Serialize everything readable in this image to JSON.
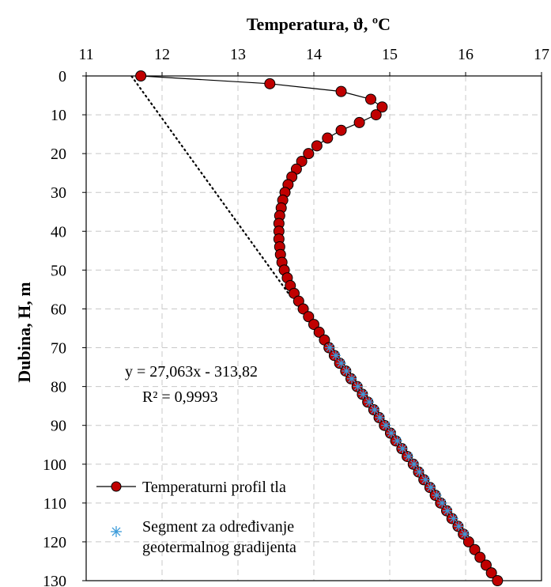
{
  "chart_data": {
    "type": "scatter",
    "title": "Temperatura, ϑ, ºC",
    "xlabel": "Temperatura, ϑ, ºC",
    "ylabel": "Dubina, H, m",
    "x_axis_position": "top",
    "y_axis_reversed": true,
    "xlim": [
      11,
      17
    ],
    "ylim": [
      0,
      130
    ],
    "x_ticks": [
      "11",
      "12",
      "13",
      "14",
      "15",
      "16",
      "17"
    ],
    "y_ticks": [
      "0",
      "10",
      "20",
      "30",
      "40",
      "50",
      "60",
      "70",
      "80",
      "90",
      "100",
      "110",
      "120",
      "130"
    ],
    "grid": "dashed",
    "legend_position": "bottom-left",
    "series": [
      {
        "name": "Temperaturni profil tla",
        "marker": "circle",
        "color": "#c00000",
        "line": "solid",
        "points": [
          [
            11.72,
            0
          ],
          [
            13.42,
            2
          ],
          [
            14.36,
            4
          ],
          [
            14.75,
            6
          ],
          [
            14.9,
            8
          ],
          [
            14.82,
            10
          ],
          [
            14.6,
            12
          ],
          [
            14.36,
            14
          ],
          [
            14.18,
            16
          ],
          [
            14.04,
            18
          ],
          [
            13.93,
            20
          ],
          [
            13.84,
            22
          ],
          [
            13.77,
            24
          ],
          [
            13.71,
            26
          ],
          [
            13.66,
            28
          ],
          [
            13.62,
            30
          ],
          [
            13.59,
            32
          ],
          [
            13.57,
            34
          ],
          [
            13.55,
            36
          ],
          [
            13.54,
            38
          ],
          [
            13.54,
            40
          ],
          [
            13.54,
            42
          ],
          [
            13.55,
            44
          ],
          [
            13.56,
            46
          ],
          [
            13.58,
            48
          ],
          [
            13.61,
            50
          ],
          [
            13.65,
            52
          ],
          [
            13.69,
            54
          ],
          [
            13.74,
            56
          ],
          [
            13.8,
            58
          ],
          [
            13.86,
            60
          ],
          [
            13.93,
            62
          ],
          [
            14.0,
            64
          ],
          [
            14.07,
            66
          ],
          [
            14.14,
            68
          ],
          [
            14.2,
            70
          ],
          [
            14.27,
            72
          ],
          [
            14.34,
            74
          ],
          [
            14.42,
            76
          ],
          [
            14.49,
            78
          ],
          [
            14.57,
            80
          ],
          [
            14.64,
            82
          ],
          [
            14.71,
            84
          ],
          [
            14.79,
            86
          ],
          [
            14.86,
            88
          ],
          [
            14.93,
            90
          ],
          [
            15.01,
            92
          ],
          [
            15.08,
            94
          ],
          [
            15.16,
            96
          ],
          [
            15.23,
            98
          ],
          [
            15.31,
            100
          ],
          [
            15.38,
            102
          ],
          [
            15.45,
            104
          ],
          [
            15.53,
            106
          ],
          [
            15.6,
            108
          ],
          [
            15.67,
            110
          ],
          [
            15.75,
            112
          ],
          [
            15.82,
            114
          ],
          [
            15.9,
            116
          ],
          [
            15.97,
            118
          ],
          [
            16.04,
            120
          ],
          [
            16.12,
            122
          ],
          [
            16.19,
            124
          ],
          [
            16.27,
            126
          ],
          [
            16.34,
            128
          ],
          [
            16.42,
            130
          ]
        ]
      },
      {
        "name": "Segment za određivanje geotermalnog gradijenta",
        "marker": "asterisk",
        "color": "#3a9ad9",
        "line": "none",
        "points": [
          [
            14.21,
            70
          ],
          [
            14.29,
            72
          ],
          [
            14.36,
            74
          ],
          [
            14.43,
            76
          ],
          [
            14.5,
            78
          ],
          [
            14.58,
            80
          ],
          [
            14.65,
            82
          ],
          [
            14.73,
            84
          ],
          [
            14.8,
            86
          ],
          [
            14.87,
            88
          ],
          [
            14.95,
            90
          ],
          [
            15.02,
            92
          ],
          [
            15.1,
            94
          ],
          [
            15.17,
            96
          ],
          [
            15.25,
            98
          ],
          [
            15.32,
            100
          ],
          [
            15.39,
            102
          ],
          [
            15.47,
            104
          ],
          [
            15.54,
            106
          ],
          [
            15.62,
            108
          ],
          [
            15.69,
            110
          ],
          [
            15.76,
            112
          ],
          [
            15.84,
            114
          ],
          [
            15.91,
            116
          ],
          [
            15.99,
            118
          ]
        ]
      }
    ],
    "trendline": {
      "style": "dotted",
      "color": "#000000",
      "slope": 27.063,
      "intercept": -313.82,
      "x_range": [
        11.6,
        13.7
      ],
      "equation": "y = 27,063x - 313,82",
      "r_squared": "R² = 0,9993"
    },
    "legend": {
      "entry1": "Temperaturni profil tla",
      "entry2_line1": "Segment za određivanje",
      "entry2_line2": "geotermalnog gradijenta"
    }
  }
}
